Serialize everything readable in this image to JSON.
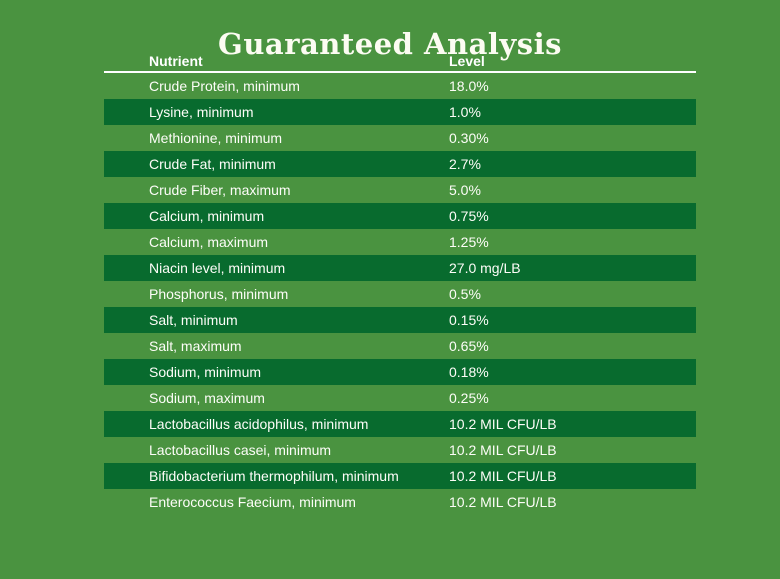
{
  "theme": {
    "background_color": "#4a9340",
    "stripe_color": "#086b2e",
    "text_color": "#fdfdf8",
    "title_color": "#fcfcf2",
    "divider_color": "#ffffff"
  },
  "title": "Guaranteed Analysis",
  "table": {
    "columns": [
      {
        "label": "Nutrient"
      },
      {
        "label": "Level"
      }
    ],
    "rows": [
      {
        "nutrient": "Crude Protein, minimum",
        "level": "18.0%"
      },
      {
        "nutrient": "Lysine, minimum",
        "level": "1.0%"
      },
      {
        "nutrient": "Methionine, minimum",
        "level": "0.30%"
      },
      {
        "nutrient": "Crude Fat, minimum",
        "level": "2.7%"
      },
      {
        "nutrient": "Crude Fiber, maximum",
        "level": "5.0%"
      },
      {
        "nutrient": "Calcium, minimum",
        "level": "0.75%"
      },
      {
        "nutrient": "Calcium, maximum",
        "level": "1.25%"
      },
      {
        "nutrient": "Niacin level, minimum",
        "level": "27.0 mg/LB"
      },
      {
        "nutrient": "Phosphorus, minimum",
        "level": "0.5%"
      },
      {
        "nutrient": "Salt, minimum",
        "level": "0.15%"
      },
      {
        "nutrient": "Salt, maximum",
        "level": "0.65%"
      },
      {
        "nutrient": "Sodium, minimum",
        "level": "0.18%"
      },
      {
        "nutrient": "Sodium, maximum",
        "level": "0.25%"
      },
      {
        "nutrient": "Lactobacillus acidophilus, minimum",
        "level": "10.2 MIL CFU/LB"
      },
      {
        "nutrient": "Lactobacillus casei, minimum",
        "level": "10.2 MIL CFU/LB"
      },
      {
        "nutrient": "Bifidobacterium thermophilum, minimum",
        "level": "10.2 MIL CFU/LB"
      },
      {
        "nutrient": "Enterococcus Faecium, minimum",
        "level": "10.2 MIL CFU/LB"
      }
    ]
  }
}
